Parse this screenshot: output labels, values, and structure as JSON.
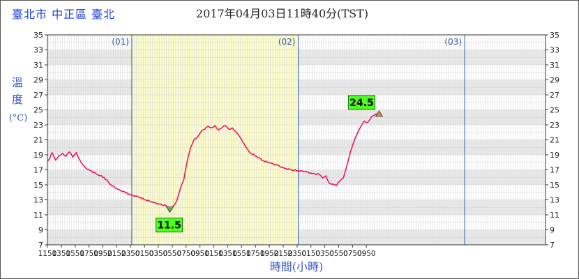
{
  "header": {
    "location": "臺北市 中正區 臺北",
    "timestamp": "2017年04月03日11時40分(TST)"
  },
  "chart_data": {
    "type": "line",
    "title": "",
    "ylabel_lines": [
      "溫",
      "度",
      "(°C)"
    ],
    "xlabel": "時間(小時)",
    "ylim": [
      7,
      35
    ],
    "yticks": [
      7,
      9,
      11,
      13,
      15,
      17,
      19,
      21,
      23,
      25,
      27,
      29,
      31,
      33,
      35
    ],
    "x_tick_labels": [
      "1150",
      "1350",
      "1550",
      "1750",
      "1950",
      "2150",
      "2350",
      "0150",
      "0350",
      "0550",
      "0750",
      "0950",
      "1150",
      "1350",
      "1550",
      "1750",
      "1950",
      "2150",
      "2350",
      "0150",
      "0350",
      "0550",
      "0750",
      "0950"
    ],
    "x_start": "2017-03-31 11:50",
    "x_end": "2017-04-03 11:40",
    "day_markers": [
      {
        "label": "(01)",
        "x": "2017-04-01 00:00"
      },
      {
        "label": "(02)",
        "x": "2017-04-02 00:00"
      },
      {
        "label": "(03)",
        "x": "2017-04-03 00:00"
      }
    ],
    "highlight_band": {
      "from": "2017-04-01 00:00",
      "to": "2017-04-02 00:00",
      "color": "#fcfcc6"
    },
    "line_color": "#e8185e",
    "grid": true,
    "series": [
      {
        "x": [
          "03-31 11:50",
          "03-31 12:10",
          "03-31 12:30",
          "03-31 13:00",
          "03-31 13:30",
          "03-31 14:00",
          "03-31 14:30",
          "03-31 15:00",
          "03-31 15:30",
          "03-31 16:00",
          "03-31 16:30",
          "03-31 17:00",
          "03-31 17:30",
          "03-31 18:00",
          "03-31 19:00",
          "03-31 20:00",
          "03-31 21:00",
          "03-31 22:00",
          "03-31 23:00",
          "04-01 00:00",
          "04-01 01:00",
          "04-01 02:00",
          "04-01 03:00",
          "04-01 04:00",
          "04-01 05:00",
          "04-01 05:30",
          "04-01 06:00",
          "04-01 06:30",
          "04-01 07:00",
          "04-01 07:30",
          "04-01 08:00",
          "04-01 08:30",
          "04-01 09:00",
          "04-01 09:30",
          "04-01 10:00",
          "04-01 10:30",
          "04-01 11:00",
          "04-01 11:30",
          "04-01 12:00",
          "04-01 12:30",
          "04-01 13:00",
          "04-01 13:30",
          "04-01 14:00",
          "04-01 14:30",
          "04-01 15:00",
          "04-01 15:30",
          "04-01 16:00",
          "04-01 17:00",
          "04-01 18:00",
          "04-01 19:00",
          "04-01 20:00",
          "04-01 21:00",
          "04-01 22:00",
          "04-01 23:00",
          "04-02 00:00",
          "04-02 01:00",
          "04-02 02:00",
          "04-02 03:00",
          "04-02 03:30",
          "04-02 04:00",
          "04-02 04:30",
          "04-02 05:00",
          "04-02 05:30",
          "04-02 06:00",
          "04-02 06:30",
          "04-02 07:00",
          "04-02 07:30",
          "04-02 08:00",
          "04-02 08:30",
          "04-02 09:00",
          "04-02 09:30",
          "04-02 10:00",
          "04-02 10:30",
          "04-02 11:00",
          "04-02 11:40"
        ],
        "values": [
          18.1,
          18.5,
          19.3,
          18.3,
          18.9,
          19.2,
          18.8,
          19.4,
          18.7,
          19.3,
          18.3,
          17.6,
          17.1,
          16.9,
          16.4,
          16.0,
          15.0,
          14.4,
          14.0,
          13.6,
          13.4,
          13.0,
          12.7,
          12.4,
          12.2,
          11.5,
          12.2,
          12.9,
          14.5,
          15.7,
          18.2,
          20.0,
          21.1,
          21.4,
          22.1,
          22.4,
          22.8,
          22.6,
          22.9,
          22.3,
          22.6,
          22.9,
          22.4,
          22.6,
          22.1,
          21.5,
          20.7,
          19.3,
          18.8,
          18.2,
          17.9,
          17.6,
          17.2,
          17.0,
          16.9,
          16.8,
          16.5,
          16.4,
          15.9,
          16.2,
          15.2,
          15.1,
          14.9,
          15.5,
          15.9,
          17.5,
          19.3,
          20.7,
          21.8,
          22.7,
          23.5,
          23.3,
          24.0,
          24.3,
          24.5
        ]
      }
    ],
    "annotations": [
      {
        "label": "11.5",
        "x": "04-01 05:30",
        "y": 11.5,
        "kind": "min",
        "marker": "down-triangle",
        "color": "#4cff1c"
      },
      {
        "label": "24.5",
        "x": "04-02 11:40",
        "y": 24.5,
        "kind": "max",
        "marker": "up-triangle",
        "color": "#4cff1c"
      }
    ]
  }
}
